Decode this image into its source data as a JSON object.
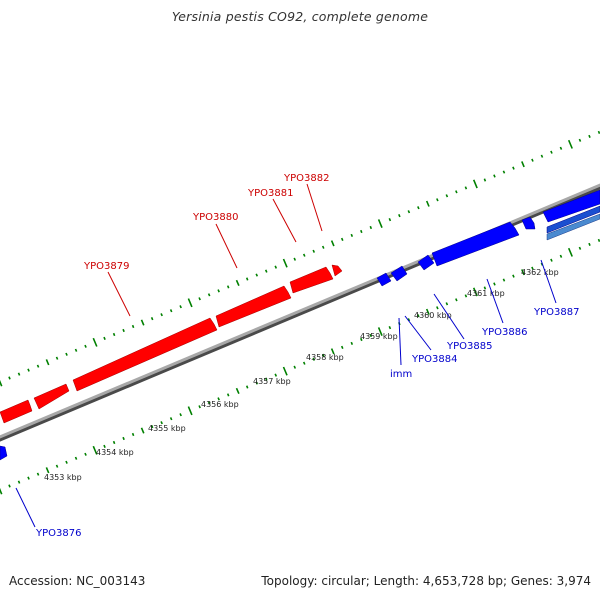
{
  "title": "Yersinia pestis CO92, complete genome",
  "footer": {
    "accession": "Accession: NC_003143",
    "topology": "Topology: circular; Length: 4,653,728 bp; Genes: 3,974"
  },
  "colors": {
    "forward_gene": "#ff0000",
    "reverse_gene": "#0000ff",
    "tick": "#008000",
    "backbone": "#808080",
    "forward_label": "#cc0000",
    "reverse_label": "#0000cc"
  },
  "scale_labels": [
    "4353 kbp",
    "4354 kbp",
    "4355 kbp",
    "4356 kbp",
    "4357 kbp",
    "4358 kbp",
    "4359 kbp",
    "4360 kbp",
    "4361 kbp",
    "4362 kbp"
  ],
  "forward_labels": [
    "YPO3879",
    "YPO3880",
    "YPO3881",
    "YPO3882"
  ],
  "reverse_labels": [
    "YPO3876",
    "imm",
    "YPO3884",
    "YPO3885",
    "YPO3886",
    "YPO3887"
  ]
}
